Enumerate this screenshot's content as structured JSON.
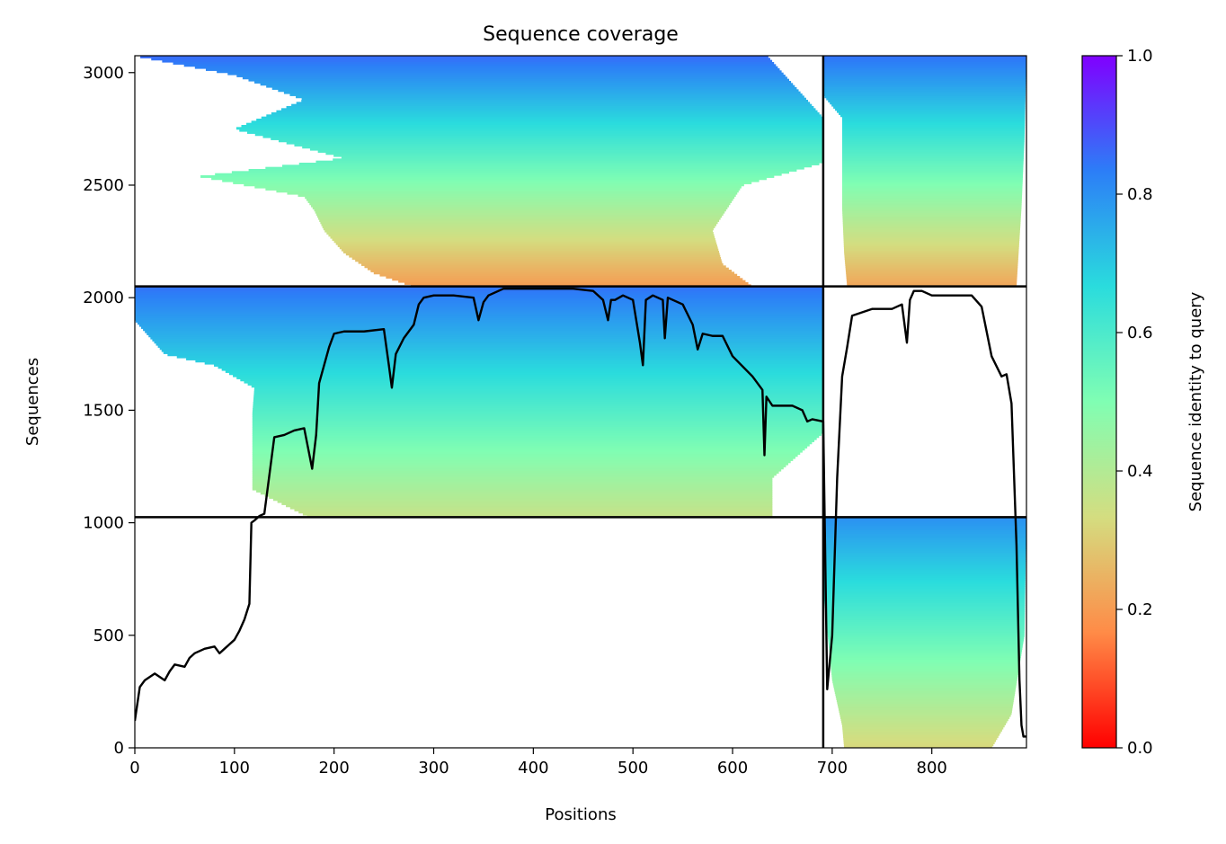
{
  "chart_data": {
    "type": "heatmap",
    "title": "Sequence coverage",
    "xlabel": "Positions",
    "ylabel": "Sequences",
    "xlim": [
      0,
      895
    ],
    "ylim": [
      0,
      3075
    ],
    "x_ticks": [
      0,
      100,
      200,
      300,
      400,
      500,
      600,
      700,
      800
    ],
    "y_ticks": [
      0,
      500,
      1000,
      1500,
      2000,
      2500,
      3000
    ],
    "colorbar": {
      "label": "Sequence identity to query",
      "min": 0.0,
      "max": 1.0,
      "ticks": [
        0.0,
        0.2,
        0.4,
        0.6,
        0.8,
        1.0
      ],
      "colormap": "rainbow_r",
      "stops": [
        "#ff0000",
        "#ff8b47",
        "#d4dd80",
        "#80feb3",
        "#2adcdd",
        "#2c7ef7",
        "#8000ff"
      ]
    },
    "chain_boundaries": {
      "positions": [
        691
      ],
      "sequences": [
        1025,
        2050
      ]
    },
    "blocks": [
      {
        "name": "chain-A-paired",
        "x_range": [
          0,
          691
        ],
        "y_range": [
          2050,
          3075
        ],
        "coverage_start": [
          [
            3075,
            0
          ],
          [
            2990,
            100
          ],
          [
            2880,
            170
          ],
          [
            2750,
            100
          ],
          [
            2620,
            210
          ],
          [
            2540,
            65
          ],
          [
            2450,
            170
          ],
          [
            2390,
            180
          ],
          [
            2300,
            190
          ],
          [
            2200,
            210
          ],
          [
            2110,
            240
          ],
          [
            2050,
            280
          ]
        ],
        "coverage_end": [
          [
            3075,
            635
          ],
          [
            2800,
            691
          ],
          [
            2600,
            691
          ],
          [
            2500,
            610
          ],
          [
            2300,
            580
          ],
          [
            2150,
            590
          ],
          [
            2050,
            620
          ]
        ],
        "identity_top": 0.86,
        "identity_bottom": 0.2
      },
      {
        "name": "chain-B-paired",
        "x_range": [
          691,
          895
        ],
        "y_range": [
          2050,
          3075
        ],
        "coverage_start": [
          [
            3075,
            691
          ],
          [
            2900,
            691
          ],
          [
            2800,
            710
          ],
          [
            2400,
            710
          ],
          [
            2200,
            712
          ],
          [
            2050,
            715
          ]
        ],
        "coverage_end": [
          [
            3075,
            895
          ],
          [
            2700,
            893
          ],
          [
            2400,
            890
          ],
          [
            2050,
            885
          ]
        ],
        "identity_top": 0.85,
        "identity_bottom": 0.22
      },
      {
        "name": "chain-A-unpaired",
        "x_range": [
          0,
          691
        ],
        "y_range": [
          1025,
          2050
        ],
        "coverage_start": [
          [
            2050,
            0
          ],
          [
            1900,
            0
          ],
          [
            1750,
            30
          ],
          [
            1700,
            80
          ],
          [
            1600,
            120
          ],
          [
            1490,
            118
          ],
          [
            1280,
            118
          ],
          [
            1150,
            118
          ],
          [
            1025,
            175
          ]
        ],
        "coverage_end": [
          [
            2050,
            691
          ],
          [
            1700,
            691
          ],
          [
            1400,
            691
          ],
          [
            1200,
            640
          ],
          [
            1025,
            640
          ]
        ],
        "identity_top": 0.85,
        "identity_bottom": 0.36
      },
      {
        "name": "chain-B-unpaired",
        "x_range": [
          691,
          895
        ],
        "y_range": [
          0,
          1025
        ],
        "coverage_start": [
          [
            1025,
            691
          ],
          [
            700,
            691
          ],
          [
            300,
            700
          ],
          [
            100,
            710
          ],
          [
            0,
            712
          ]
        ],
        "coverage_end": [
          [
            1025,
            895
          ],
          [
            500,
            893
          ],
          [
            150,
            880
          ],
          [
            0,
            860
          ]
        ],
        "identity_top": 0.8,
        "identity_bottom": 0.32
      }
    ],
    "coverage_line": {
      "x": [
        0,
        5,
        10,
        20,
        30,
        35,
        40,
        50,
        55,
        60,
        70,
        80,
        85,
        90,
        100,
        105,
        110,
        115,
        117,
        120,
        125,
        130,
        140,
        150,
        160,
        170,
        178,
        182,
        185,
        190,
        195,
        200,
        210,
        230,
        250,
        255,
        258,
        262,
        270,
        280,
        285,
        290,
        300,
        320,
        340,
        345,
        350,
        355,
        360,
        370,
        380,
        400,
        420,
        440,
        460,
        470,
        475,
        478,
        482,
        490,
        500,
        507,
        510,
        513,
        520,
        530,
        532,
        535,
        540,
        550,
        560,
        565,
        570,
        580,
        590,
        600,
        620,
        630,
        632,
        634,
        640,
        660,
        670,
        675,
        680,
        691,
        695,
        700,
        705,
        710,
        715,
        720,
        740,
        760,
        770,
        775,
        778,
        782,
        790,
        800,
        820,
        840,
        850,
        860,
        870,
        875,
        880,
        885,
        888,
        890,
        892,
        895
      ],
      "y": [
        120,
        270,
        300,
        330,
        300,
        340,
        370,
        360,
        400,
        420,
        440,
        450,
        420,
        440,
        480,
        520,
        570,
        640,
        1000,
        1010,
        1030,
        1040,
        1380,
        1390,
        1410,
        1420,
        1240,
        1390,
        1620,
        1700,
        1780,
        1840,
        1850,
        1850,
        1860,
        1700,
        1600,
        1750,
        1820,
        1880,
        1970,
        2000,
        2010,
        2010,
        2000,
        1900,
        1980,
        2010,
        2020,
        2040,
        2040,
        2040,
        2040,
        2040,
        2030,
        1990,
        1900,
        1990,
        1990,
        2010,
        1990,
        1800,
        1700,
        1990,
        2010,
        1990,
        1820,
        2000,
        1990,
        1970,
        1880,
        1770,
        1840,
        1830,
        1830,
        1740,
        1650,
        1590,
        1300,
        1560,
        1520,
        1520,
        1500,
        1450,
        1460,
        1450,
        260,
        500,
        1200,
        1650,
        1780,
        1920,
        1950,
        1950,
        1970,
        1800,
        1990,
        2030,
        2030,
        2010,
        2010,
        2010,
        1960,
        1740,
        1650,
        1660,
        1530,
        900,
        300,
        100,
        50,
        50
      ]
    }
  }
}
